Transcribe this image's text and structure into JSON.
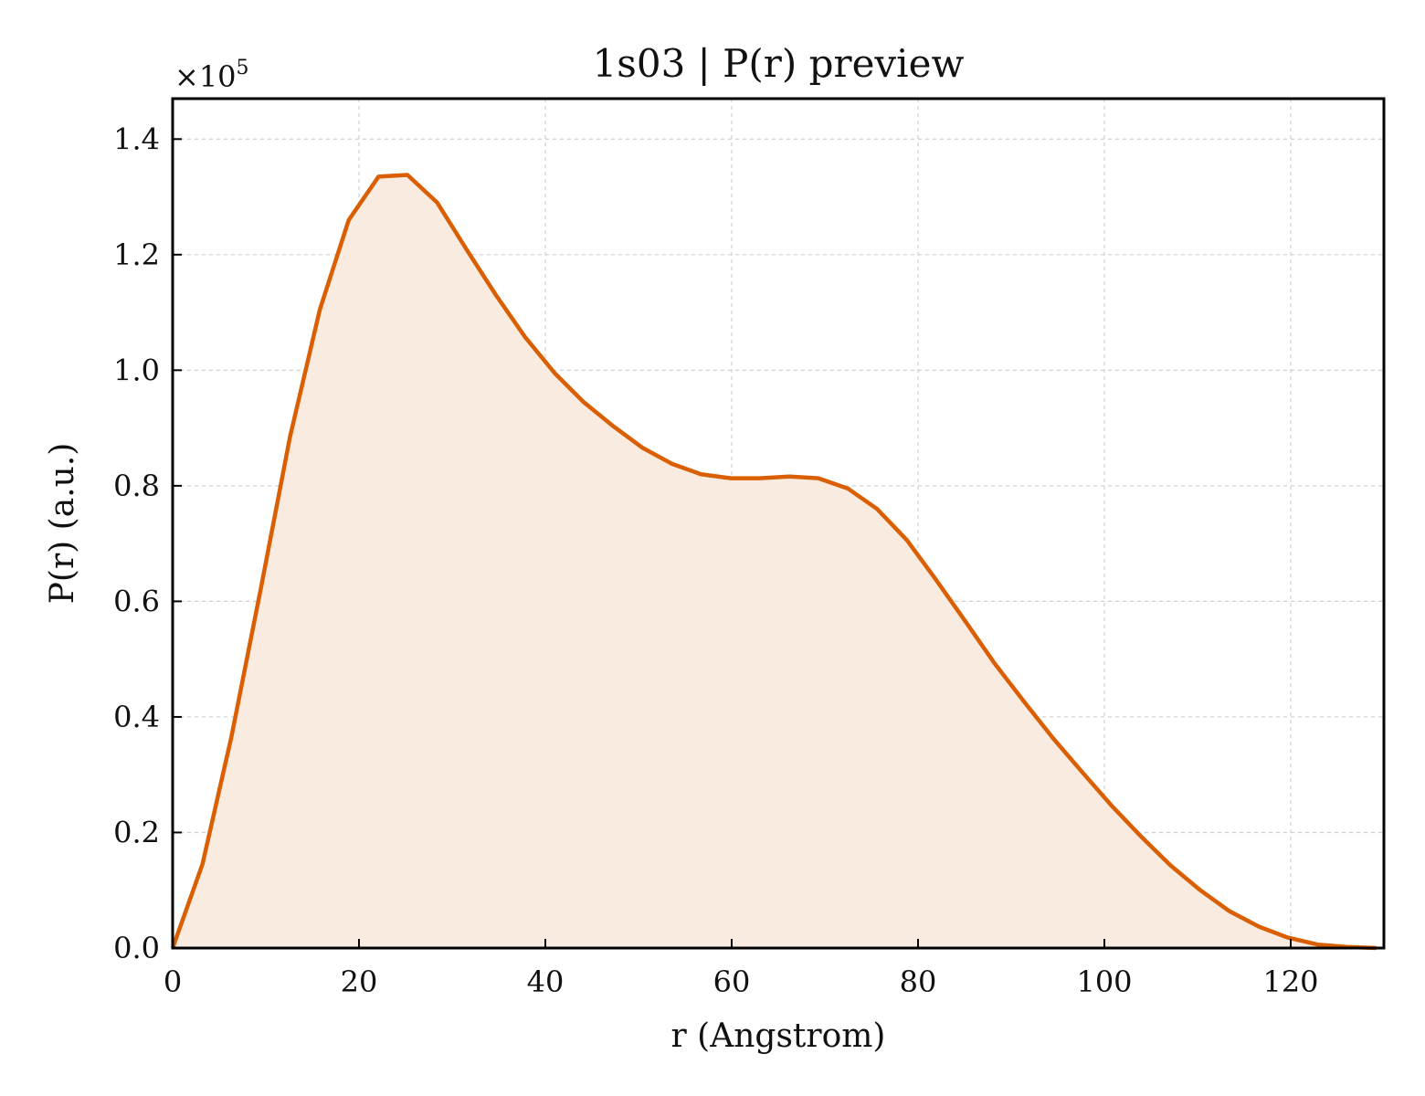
{
  "chart_data": {
    "type": "area",
    "title": "1s03 | P(r) preview",
    "xlabel": "r (Angstrom)",
    "ylabel": "P(r) (a.u.)",
    "y_multiplier_label": "×10",
    "y_multiplier_exp": "5",
    "y_scale": 100000,
    "xlim": [
      0,
      130
    ],
    "ylim": [
      0,
      1.47
    ],
    "x_ticks": [
      0,
      20,
      40,
      60,
      80,
      100,
      120
    ],
    "x_tick_labels": [
      "0",
      "20",
      "40",
      "60",
      "80",
      "100",
      "120"
    ],
    "y_ticks": [
      0,
      0.2,
      0.4,
      0.6,
      0.8,
      1.0,
      1.2,
      1.4
    ],
    "y_tick_labels": [
      "0.0",
      "0.2",
      "0.4",
      "0.6",
      "0.8",
      "1.0",
      "1.2",
      "1.4"
    ],
    "grid": true,
    "line_color": "#d95f02",
    "fill_color": "#f9ebe0",
    "series": [
      {
        "x": [
          0,
          3.2,
          6.3,
          9.5,
          12.6,
          15.8,
          18.9,
          22.1,
          25.2,
          28.4,
          31.5,
          34.7,
          37.8,
          41.0,
          44.1,
          47.3,
          50.4,
          53.6,
          56.7,
          59.9,
          63.0,
          66.2,
          69.3,
          72.5,
          75.6,
          78.8,
          81.9,
          85.1,
          88.2,
          91.4,
          94.5,
          97.7,
          100.8,
          104.0,
          107.1,
          110.3,
          113.4,
          116.6,
          119.7,
          122.9,
          126.0,
          129.2
        ],
        "y": [
          0.0,
          0.145,
          0.365,
          0.625,
          0.885,
          1.105,
          1.26,
          1.335,
          1.338,
          1.29,
          1.21,
          1.13,
          1.058,
          0.995,
          0.945,
          0.903,
          0.866,
          0.838,
          0.82,
          0.813,
          0.813,
          0.816,
          0.813,
          0.795,
          0.76,
          0.706,
          0.638,
          0.565,
          0.493,
          0.426,
          0.363,
          0.303,
          0.246,
          0.192,
          0.143,
          0.1,
          0.064,
          0.037,
          0.018,
          0.006,
          0.002,
          0.0
        ]
      }
    ]
  }
}
